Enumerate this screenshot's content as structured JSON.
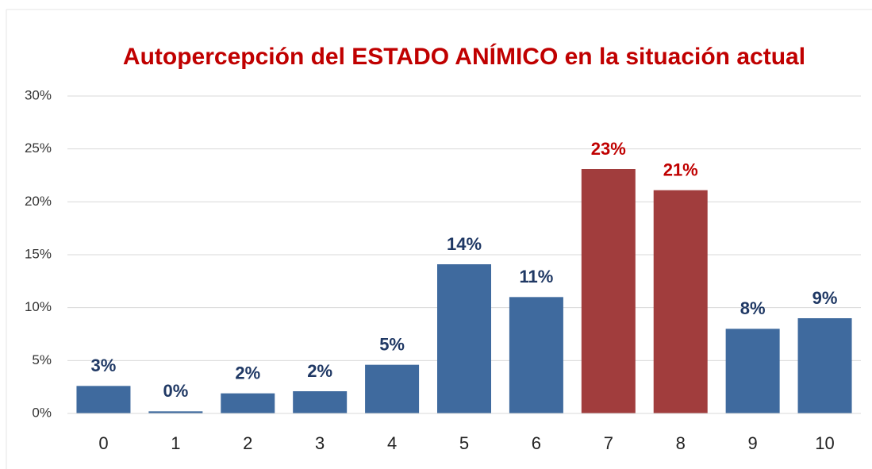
{
  "chart_data": {
    "type": "bar",
    "title": "Autopercepción del ESTADO ANÍMICO en la situación actual",
    "categories": [
      "0",
      "1",
      "2",
      "3",
      "4",
      "5",
      "6",
      "7",
      "8",
      "9",
      "10"
    ],
    "values": [
      2.6,
      0.2,
      1.9,
      2.1,
      4.6,
      14.1,
      11.0,
      23.1,
      21.1,
      8.0,
      9.0
    ],
    "value_labels": [
      "3%",
      "0%",
      "2%",
      "2%",
      "5%",
      "14%",
      "11%",
      "23%",
      "21%",
      "8%",
      "9%"
    ],
    "colors": [
      "#3f6a9e",
      "#3f6a9e",
      "#3f6a9e",
      "#3f6a9e",
      "#3f6a9e",
      "#3f6a9e",
      "#3f6a9e",
      "#a13d3d",
      "#a13d3d",
      "#3f6a9e",
      "#3f6a9e"
    ],
    "label_colors": [
      "#1f3864",
      "#1f3864",
      "#1f3864",
      "#1f3864",
      "#1f3864",
      "#1f3864",
      "#1f3864",
      "#c00000",
      "#c00000",
      "#1f3864",
      "#1f3864"
    ],
    "ylim": [
      0,
      30
    ],
    "yticks": [
      {
        "value": 0,
        "label": "0%"
      },
      {
        "value": 5,
        "label": "5%"
      },
      {
        "value": 10,
        "label": "10%"
      },
      {
        "value": 15,
        "label": "15%"
      },
      {
        "value": 20,
        "label": "20%"
      },
      {
        "value": 25,
        "label": "25%"
      },
      {
        "value": 30,
        "label": "30%"
      }
    ],
    "grid": true
  }
}
